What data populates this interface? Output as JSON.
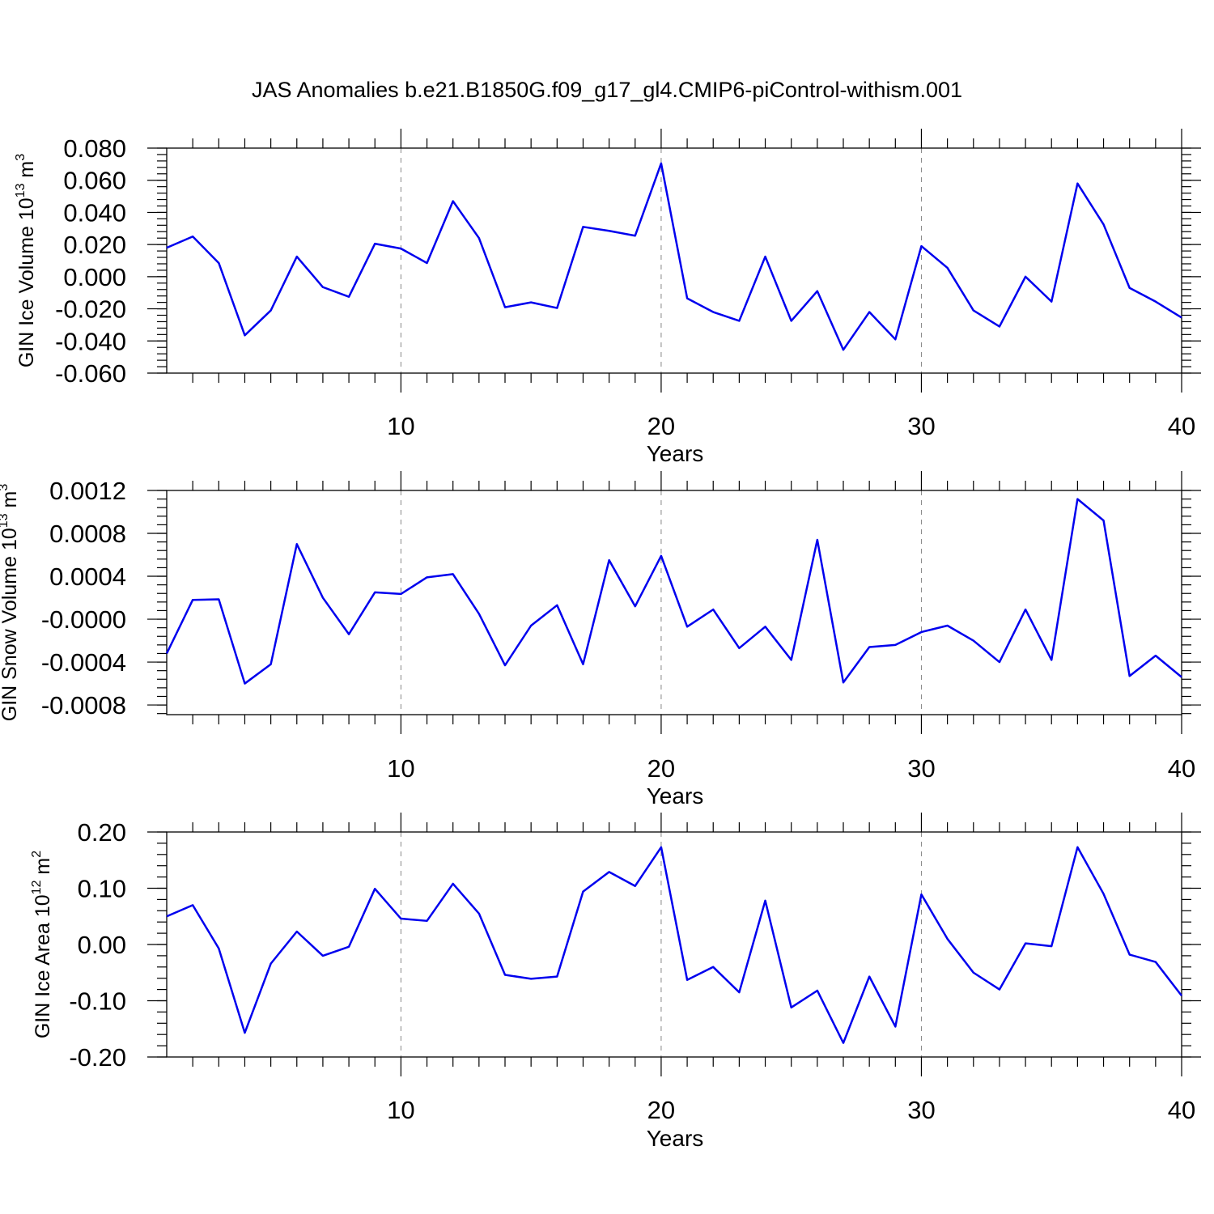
{
  "figure": {
    "title": "JAS Anomalies b.e21.B1850G.f09_g17_gl4.CMIP6-piControl-withism.001"
  },
  "chart_data": [
    {
      "type": "line",
      "ylabel_main": "GIN Ice Volume 10",
      "ylabel_exp": "13",
      "ylabel_unit": " m",
      "ylabel_unit_exp": "3",
      "xlabel": "Years",
      "xlim": [
        1,
        40
      ],
      "ylim": [
        -0.06,
        0.08
      ],
      "x_ticks": [
        10,
        20,
        30,
        40
      ],
      "x_tick_labels": [
        "10",
        "20",
        "30",
        "40"
      ],
      "y_ticks": [
        -0.06,
        -0.04,
        -0.02,
        0.0,
        0.02,
        0.04,
        0.06,
        0.08
      ],
      "y_tick_labels": [
        "-0.060",
        "-0.040",
        "-0.020",
        "0.000",
        "0.020",
        "0.040",
        "0.060",
        "0.080"
      ],
      "grid_x": [
        10,
        20,
        30
      ],
      "line_color": "#0000ee",
      "x": [
        1,
        2,
        3,
        4,
        5,
        6,
        7,
        8,
        9,
        10,
        11,
        12,
        13,
        14,
        15,
        16,
        17,
        18,
        19,
        20,
        21,
        22,
        23,
        24,
        25,
        26,
        27,
        28,
        29,
        30,
        31,
        32,
        33,
        34,
        35,
        36,
        37,
        38,
        39,
        40
      ],
      "values": [
        0.018,
        0.025,
        0.0085,
        -0.0365,
        -0.021,
        0.0125,
        -0.0065,
        -0.0125,
        0.0205,
        0.0175,
        0.0085,
        0.047,
        0.024,
        -0.019,
        -0.016,
        -0.0195,
        0.031,
        0.0285,
        0.0255,
        0.0705,
        -0.0135,
        -0.022,
        -0.0275,
        0.0125,
        -0.0275,
        -0.009,
        -0.0455,
        -0.022,
        -0.039,
        0.019,
        0.0055,
        -0.021,
        -0.031,
        0.0,
        -0.0155,
        0.058,
        0.0325,
        -0.007,
        -0.0155,
        -0.0255
      ]
    },
    {
      "type": "line",
      "ylabel_main": "GIN Snow Volume 10",
      "ylabel_exp": "13",
      "ylabel_unit": " m",
      "ylabel_unit_exp": "3",
      "xlabel": "Years",
      "xlim": [
        1,
        40
      ],
      "ylim": [
        -0.00089,
        0.0012
      ],
      "x_ticks": [
        10,
        20,
        30,
        40
      ],
      "x_tick_labels": [
        "10",
        "20",
        "30",
        "40"
      ],
      "y_ticks": [
        -0.0008,
        -0.0004,
        0.0,
        0.0004,
        0.0008,
        0.0012
      ],
      "y_tick_labels": [
        "-0.0008",
        "-0.0004",
        "-0.0000",
        "0.0004",
        "0.0008",
        "0.0012"
      ],
      "grid_x": [
        10,
        20,
        30
      ],
      "line_color": "#0000ee",
      "x": [
        1,
        2,
        3,
        4,
        5,
        6,
        7,
        8,
        9,
        10,
        11,
        12,
        13,
        14,
        15,
        16,
        17,
        18,
        19,
        20,
        21,
        22,
        23,
        24,
        25,
        26,
        27,
        28,
        29,
        30,
        31,
        32,
        33,
        34,
        35,
        36,
        37,
        38,
        39,
        40
      ],
      "values": [
        -0.00032,
        0.00018,
        0.000185,
        -0.0006,
        -0.00042,
        0.0007,
        0.0002,
        -0.00014,
        0.00025,
        0.000235,
        0.00039,
        0.00042,
        5e-05,
        -0.00043,
        -6e-05,
        0.00013,
        -0.00042,
        0.00055,
        0.00012,
        0.00059,
        -7e-05,
        9e-05,
        -0.00027,
        -7e-05,
        -0.00038,
        0.00074,
        -0.00059,
        -0.00026,
        -0.00024,
        -0.00012,
        -6e-05,
        -0.0002,
        -0.0004,
        9e-05,
        -0.00038,
        0.00112,
        0.00092,
        -0.00053,
        -0.00034,
        -0.00054
      ]
    },
    {
      "type": "line",
      "ylabel_main": "GIN Ice Area 10",
      "ylabel_exp": "12",
      "ylabel_unit": " m",
      "ylabel_unit_exp": "2",
      "xlabel": "Years",
      "xlim": [
        1,
        40
      ],
      "ylim": [
        -0.2,
        0.2
      ],
      "x_ticks": [
        10,
        20,
        30,
        40
      ],
      "x_tick_labels": [
        "10",
        "20",
        "30",
        "40"
      ],
      "y_ticks": [
        -0.2,
        -0.1,
        0.0,
        0.1,
        0.2
      ],
      "y_tick_labels": [
        "-0.20",
        "-0.10",
        "0.00",
        "0.10",
        "0.20"
      ],
      "grid_x": [
        10,
        20,
        30
      ],
      "line_color": "#0000ee",
      "x": [
        1,
        2,
        3,
        4,
        5,
        6,
        7,
        8,
        9,
        10,
        11,
        12,
        13,
        14,
        15,
        16,
        17,
        18,
        19,
        20,
        21,
        22,
        23,
        24,
        25,
        26,
        27,
        28,
        29,
        30,
        31,
        32,
        33,
        34,
        35,
        36,
        37,
        38,
        39,
        40
      ],
      "values": [
        0.05,
        0.07,
        -0.007,
        -0.157,
        -0.034,
        0.023,
        -0.02,
        -0.004,
        0.099,
        0.046,
        0.042,
        0.108,
        0.055,
        -0.054,
        -0.061,
        -0.057,
        0.094,
        0.129,
        0.104,
        0.173,
        -0.063,
        -0.04,
        -0.085,
        0.078,
        -0.112,
        -0.082,
        -0.175,
        -0.057,
        -0.146,
        0.089,
        0.01,
        -0.05,
        -0.08,
        0.002,
        -0.003,
        0.173,
        0.09,
        -0.018,
        -0.031,
        -0.091
      ]
    }
  ]
}
